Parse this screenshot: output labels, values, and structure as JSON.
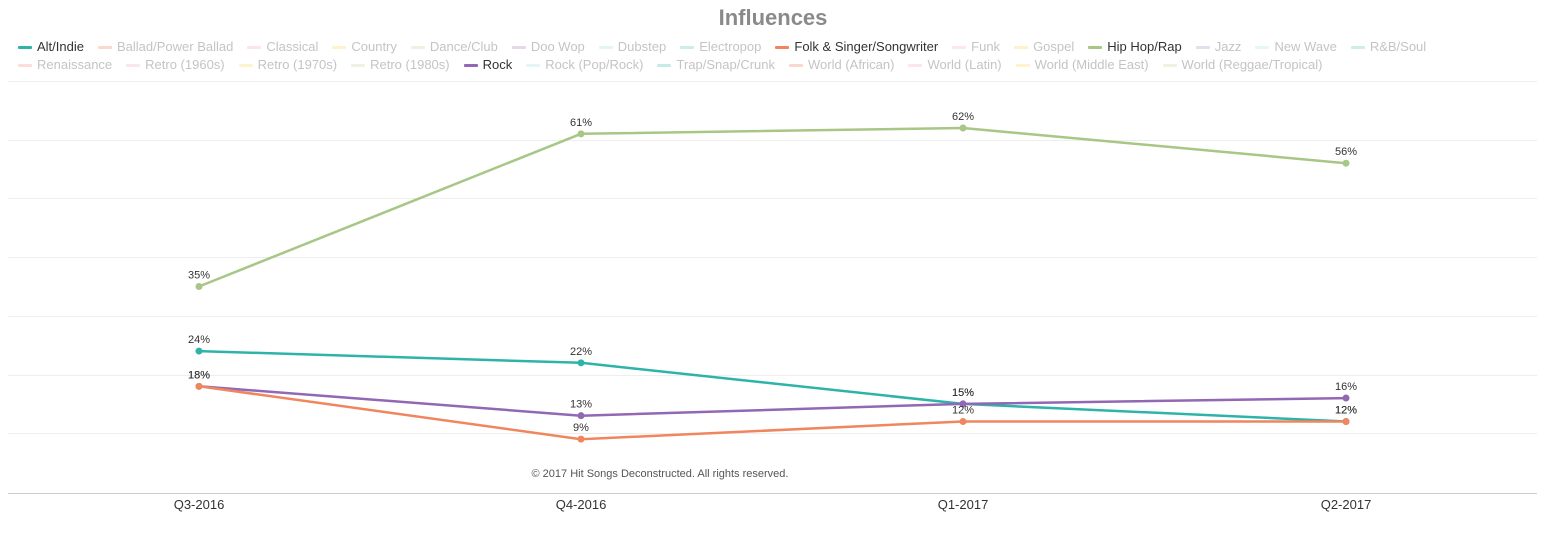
{
  "chart_data": {
    "type": "line",
    "title": "Influences",
    "categories": [
      "Q3-2016",
      "Q4-2016",
      "Q1-2017",
      "Q2-2017"
    ],
    "ylim": [
      0,
      70
    ],
    "grid": true,
    "legend_placement": "top",
    "legend": [
      {
        "name": "Alt/Indie",
        "color": "#2eb3a9",
        "active": true
      },
      {
        "name": "Ballad/Power Ballad",
        "color": "#f5a98f",
        "active": false
      },
      {
        "name": "Classical",
        "color": "#f9c0d8",
        "active": false
      },
      {
        "name": "Country",
        "color": "#fde58a",
        "active": false
      },
      {
        "name": "Dance/Club",
        "color": "#d6e0b8",
        "active": false
      },
      {
        "name": "Doo Wop",
        "color": "#c9a6d6",
        "active": false
      },
      {
        "name": "Dubstep",
        "color": "#bfe6e8",
        "active": false
      },
      {
        "name": "Electropop",
        "color": "#8ed8d2",
        "active": false
      },
      {
        "name": "Folk & Singer/Songwriter",
        "color": "#f0865e",
        "active": true
      },
      {
        "name": "Funk",
        "color": "#f9c9da",
        "active": false
      },
      {
        "name": "Gospel",
        "color": "#fde38a",
        "active": false
      },
      {
        "name": "Hip Hop/Rap",
        "color": "#a8c686",
        "active": true
      },
      {
        "name": "Jazz",
        "color": "#c9b3e0",
        "active": false
      },
      {
        "name": "New Wave",
        "color": "#c6eaea",
        "active": false
      },
      {
        "name": "R&B/Soul",
        "color": "#93d5cf",
        "active": false
      },
      {
        "name": "Renaissance",
        "color": "#f6b7a0",
        "active": false
      },
      {
        "name": "Retro (1960s)",
        "color": "#f9c6dc",
        "active": false
      },
      {
        "name": "Retro (1970s)",
        "color": "#fde58a",
        "active": false
      },
      {
        "name": "Retro (1980s)",
        "color": "#d9e2bd",
        "active": false
      },
      {
        "name": "Rock",
        "color": "#9267b4",
        "active": true
      },
      {
        "name": "Rock (Pop/Rock)",
        "color": "#c4e8ea",
        "active": false
      },
      {
        "name": "Trap/Snap/Crunk",
        "color": "#7fd0ca",
        "active": false
      },
      {
        "name": "World (African)",
        "color": "#f5a98f",
        "active": false
      },
      {
        "name": "World (Latin)",
        "color": "#f9c6dc",
        "active": false
      },
      {
        "name": "World (Middle East)",
        "color": "#fde58a",
        "active": false
      },
      {
        "name": "World (Reggae/Tropical)",
        "color": "#d9e2bd",
        "active": false
      }
    ],
    "series": [
      {
        "name": "Hip Hop/Rap",
        "color": "#a8c686",
        "values": [
          35,
          61,
          62,
          56
        ],
        "labels": [
          "35%",
          "61%",
          "62%",
          "56%"
        ]
      },
      {
        "name": "Alt/Indie",
        "color": "#2eb3a9",
        "values": [
          24,
          22,
          15,
          12
        ],
        "labels": [
          "24%",
          "22%",
          "15%",
          "12%"
        ]
      },
      {
        "name": "Rock",
        "color": "#9267b4",
        "values": [
          18,
          13,
          15,
          16
        ],
        "labels": [
          "18%",
          "13%",
          "15%",
          "16%"
        ]
      },
      {
        "name": "Folk & Singer/Songwriter",
        "color": "#f0865e",
        "values": [
          18,
          9,
          12,
          12
        ],
        "labels": [
          "18%",
          "9%",
          "12%",
          "12%"
        ]
      }
    ],
    "credits": "© 2017 Hit Songs Deconstructed. All rights reserved."
  }
}
